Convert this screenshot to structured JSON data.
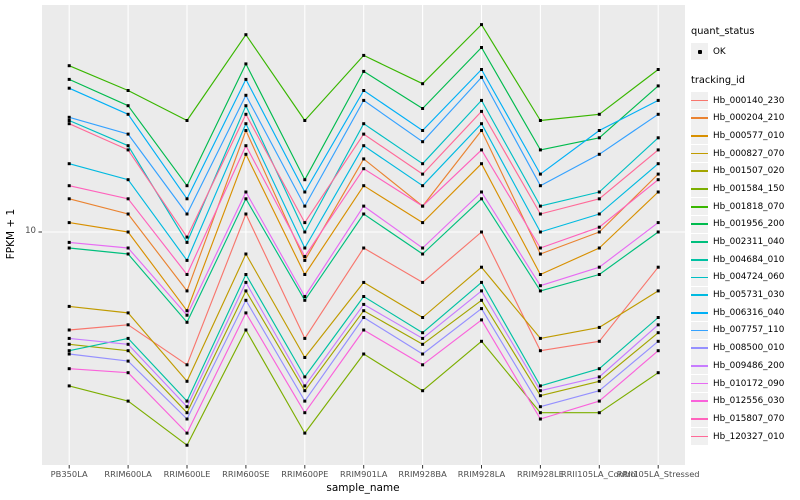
{
  "legend": {
    "quant_status_title": "quant_status",
    "ok_label": "OK",
    "tracking_id_title": "tracking_id"
  },
  "chart_data": {
    "type": "line",
    "title": "",
    "xlabel": "sample_name",
    "ylabel": "FPKM + 1",
    "y_scale": "log10",
    "y_ticks": [
      10
    ],
    "y_tick_labels": [
      "10"
    ],
    "ylim": [
      1.05,
      100
    ],
    "grid": "major white gridlines on gray panel",
    "legend_position": "right",
    "panel_bg": "#EBEBEB",
    "grid_color": "#FFFFFF",
    "point_color": "#000000",
    "categories": [
      "PB350LA",
      "RRIM600LA",
      "RRIM600LE",
      "RRIM600SE",
      "RRIM600PE",
      "RRIM901LA",
      "RRIM928BA",
      "RRIM928LA",
      "RRIM928LE",
      "RRII105LA_Control",
      "RRII105LA_Stressed"
    ],
    "series": [
      {
        "name": "Hb_000140_230",
        "color": "#F8766D",
        "values": [
          3.7,
          3.9,
          2.6,
          12,
          3.4,
          8.5,
          6.0,
          10,
          3.0,
          3.3,
          7.0
        ]
      },
      {
        "name": "Hb_000204_210",
        "color": "#EA8331",
        "values": [
          14,
          12,
          5.5,
          28,
          7.5,
          21,
          13,
          28,
          8.0,
          10,
          18
        ]
      },
      {
        "name": "Hb_000577_010",
        "color": "#D89000",
        "values": [
          11,
          10,
          4.5,
          22,
          6.5,
          16,
          11,
          20,
          6.5,
          8.5,
          15
        ]
      },
      {
        "name": "Hb_000827_070",
        "color": "#C09B00",
        "values": [
          4.7,
          4.4,
          2.2,
          8.0,
          2.8,
          6.0,
          4.2,
          7.0,
          3.4,
          3.8,
          5.5
        ]
      },
      {
        "name": "Hb_001507_020",
        "color": "#A3A500",
        "values": [
          3.2,
          3.0,
          1.6,
          5.5,
          2.0,
          4.5,
          3.2,
          5.0,
          1.9,
          2.2,
          3.6
        ]
      },
      {
        "name": "Hb_001584_150",
        "color": "#7CAE00",
        "values": [
          2.1,
          1.8,
          1.15,
          3.7,
          1.3,
          2.9,
          2.0,
          3.3,
          1.6,
          1.6,
          2.4
        ]
      },
      {
        "name": "Hb_001818_070",
        "color": "#39B600",
        "values": [
          54,
          42,
          31,
          74,
          31,
          60,
          45,
          82,
          31,
          33,
          52
        ]
      },
      {
        "name": "Hb_001956_200",
        "color": "#00BB4E",
        "values": [
          47,
          36,
          16,
          55,
          17,
          51,
          35,
          65,
          23,
          26,
          44
        ]
      },
      {
        "name": "Hb_002311_040",
        "color": "#00BF7D",
        "values": [
          8.5,
          8.0,
          4.0,
          14,
          5.0,
          12,
          8.0,
          14,
          5.5,
          6.5,
          10
        ]
      },
      {
        "name": "Hb_004684_010",
        "color": "#00C1A3",
        "values": [
          3.0,
          3.4,
          1.8,
          6.5,
          2.3,
          5.2,
          3.6,
          6.0,
          2.1,
          2.5,
          4.2
        ]
      },
      {
        "name": "Hb_004724_060",
        "color": "#00BFC4",
        "values": [
          31,
          24,
          9.0,
          36,
          10,
          30,
          20,
          38,
          13,
          15,
          26
        ]
      },
      {
        "name": "Hb_005731_030",
        "color": "#00BAE0",
        "values": [
          20,
          17,
          7.5,
          30,
          8.5,
          24,
          16,
          30,
          10,
          12,
          20
        ]
      },
      {
        "name": "Hb_006316_040",
        "color": "#00B0F6",
        "values": [
          43,
          33,
          14,
          47,
          15,
          42,
          28,
          52,
          18,
          28,
          38
        ]
      },
      {
        "name": "Hb_007757_110",
        "color": "#35A2FF",
        "values": [
          32,
          27,
          12,
          40,
          13,
          38,
          25,
          48,
          16,
          22,
          33
        ]
      },
      {
        "name": "Hb_008500_010",
        "color": "#9590FF",
        "values": [
          2.9,
          2.7,
          1.5,
          5.0,
          1.8,
          4.2,
          2.9,
          4.6,
          1.7,
          2.0,
          3.3
        ]
      },
      {
        "name": "Hb_009486_200",
        "color": "#C77CFF",
        "values": [
          3.4,
          3.2,
          1.7,
          6.0,
          2.1,
          4.8,
          3.4,
          5.5,
          2.0,
          2.3,
          3.9
        ]
      },
      {
        "name": "Hb_010172_090",
        "color": "#E76BF3",
        "values": [
          9.0,
          8.5,
          4.3,
          15,
          5.2,
          13,
          8.5,
          15,
          5.8,
          7.0,
          11
        ]
      },
      {
        "name": "Hb_012556_030",
        "color": "#FA62DB",
        "values": [
          2.5,
          2.4,
          1.3,
          4.4,
          1.6,
          3.7,
          2.6,
          4.1,
          1.5,
          1.8,
          3.0
        ]
      },
      {
        "name": "Hb_015807_070",
        "color": "#FF62BC",
        "values": [
          16,
          14,
          6.5,
          24,
          7.8,
          19,
          13,
          23,
          8.5,
          10.5,
          17
        ]
      },
      {
        "name": "Hb_120327_010",
        "color": "#FF6A98",
        "values": [
          30,
          23,
          9.5,
          33,
          11,
          27,
          18,
          34,
          12,
          14,
          23
        ]
      }
    ]
  }
}
